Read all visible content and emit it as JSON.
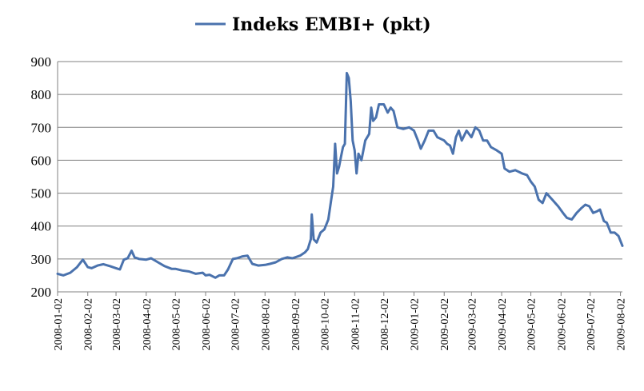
{
  "chart_data": {
    "type": "line",
    "title": "",
    "legend": {
      "position": "top-center"
    },
    "grid": {
      "horizontal": true,
      "vertical": false
    },
    "ylim": [
      200,
      900
    ],
    "yticks": [
      200,
      300,
      400,
      500,
      600,
      700,
      800,
      900
    ],
    "xlim": [
      "2008-01-02",
      "2009-08-04"
    ],
    "xticks": [
      "2008-01-02",
      "2008-02-02",
      "2008-03-02",
      "2008-04-02",
      "2008-05-02",
      "2008-06-02",
      "2008-07-02",
      "2008-08-02",
      "2008-09-02",
      "2008-10-02",
      "2008-11-02",
      "2008-12-02",
      "2009-01-02",
      "2009-02-02",
      "2009-03-02",
      "2009-04-02",
      "2009-05-02",
      "2009-06-02",
      "2009-07-02",
      "2009-08-02"
    ],
    "series": [
      {
        "name": "Indeks EMBI+ (pkt)",
        "color": "#4a72ad",
        "points": [
          [
            "2008-01-02",
            255
          ],
          [
            "2008-01-08",
            250
          ],
          [
            "2008-01-15",
            258
          ],
          [
            "2008-01-22",
            275
          ],
          [
            "2008-01-28",
            298
          ],
          [
            "2008-02-02",
            275
          ],
          [
            "2008-02-06",
            272
          ],
          [
            "2008-02-12",
            280
          ],
          [
            "2008-02-18",
            284
          ],
          [
            "2008-02-25",
            278
          ],
          [
            "2008-03-02",
            272
          ],
          [
            "2008-03-06",
            268
          ],
          [
            "2008-03-10",
            298
          ],
          [
            "2008-03-14",
            302
          ],
          [
            "2008-03-18",
            325
          ],
          [
            "2008-03-21",
            305
          ],
          [
            "2008-03-26",
            300
          ],
          [
            "2008-04-02",
            298
          ],
          [
            "2008-04-07",
            302
          ],
          [
            "2008-04-14",
            290
          ],
          [
            "2008-04-21",
            278
          ],
          [
            "2008-04-28",
            270
          ],
          [
            "2008-05-02",
            270
          ],
          [
            "2008-05-09",
            265
          ],
          [
            "2008-05-16",
            262
          ],
          [
            "2008-05-23",
            255
          ],
          [
            "2008-05-30",
            258
          ],
          [
            "2008-06-02",
            250
          ],
          [
            "2008-06-06",
            252
          ],
          [
            "2008-06-12",
            243
          ],
          [
            "2008-06-16",
            250
          ],
          [
            "2008-06-21",
            250
          ],
          [
            "2008-06-25",
            268
          ],
          [
            "2008-06-30",
            300
          ],
          [
            "2008-07-04",
            302
          ],
          [
            "2008-07-10",
            308
          ],
          [
            "2008-07-15",
            310
          ],
          [
            "2008-07-20",
            285
          ],
          [
            "2008-07-26",
            280
          ],
          [
            "2008-08-02",
            282
          ],
          [
            "2008-08-07",
            285
          ],
          [
            "2008-08-13",
            290
          ],
          [
            "2008-08-19",
            300
          ],
          [
            "2008-08-25",
            305
          ],
          [
            "2008-08-30",
            302
          ],
          [
            "2008-09-02",
            305
          ],
          [
            "2008-09-07",
            310
          ],
          [
            "2008-09-12",
            320
          ],
          [
            "2008-09-15",
            330
          ],
          [
            "2008-09-18",
            360
          ],
          [
            "2008-09-19",
            435
          ],
          [
            "2008-09-21",
            360
          ],
          [
            "2008-09-24",
            350
          ],
          [
            "2008-09-28",
            380
          ],
          [
            "2008-10-02",
            390
          ],
          [
            "2008-10-06",
            420
          ],
          [
            "2008-10-09",
            480
          ],
          [
            "2008-10-11",
            520
          ],
          [
            "2008-10-13",
            650
          ],
          [
            "2008-10-15",
            560
          ],
          [
            "2008-10-17",
            580
          ],
          [
            "2008-10-19",
            610
          ],
          [
            "2008-10-21",
            640
          ],
          [
            "2008-10-23",
            650
          ],
          [
            "2008-10-25",
            865
          ],
          [
            "2008-10-27",
            850
          ],
          [
            "2008-10-29",
            780
          ],
          [
            "2008-10-31",
            660
          ],
          [
            "2008-11-02",
            630
          ],
          [
            "2008-11-04",
            560
          ],
          [
            "2008-11-06",
            620
          ],
          [
            "2008-11-09",
            600
          ],
          [
            "2008-11-13",
            660
          ],
          [
            "2008-11-17",
            680
          ],
          [
            "2008-11-19",
            760
          ],
          [
            "2008-11-21",
            720
          ],
          [
            "2008-11-24",
            730
          ],
          [
            "2008-11-27",
            770
          ],
          [
            "2008-12-02",
            770
          ],
          [
            "2008-12-06",
            745
          ],
          [
            "2008-12-09",
            760
          ],
          [
            "2008-12-12",
            750
          ],
          [
            "2008-12-16",
            700
          ],
          [
            "2008-12-22",
            695
          ],
          [
            "2008-12-28",
            700
          ],
          [
            "2009-01-02",
            690
          ],
          [
            "2009-01-06",
            660
          ],
          [
            "2009-01-09",
            635
          ],
          [
            "2009-01-13",
            660
          ],
          [
            "2009-01-17",
            690
          ],
          [
            "2009-01-22",
            690
          ],
          [
            "2009-01-26",
            670
          ],
          [
            "2009-02-02",
            660
          ],
          [
            "2009-02-05",
            650
          ],
          [
            "2009-02-08",
            645
          ],
          [
            "2009-02-11",
            620
          ],
          [
            "2009-02-14",
            670
          ],
          [
            "2009-02-17",
            690
          ],
          [
            "2009-02-20",
            660
          ],
          [
            "2009-02-25",
            690
          ],
          [
            "2009-03-02",
            670
          ],
          [
            "2009-03-06",
            700
          ],
          [
            "2009-03-10",
            690
          ],
          [
            "2009-03-14",
            660
          ],
          [
            "2009-03-18",
            660
          ],
          [
            "2009-03-22",
            640
          ],
          [
            "2009-03-28",
            630
          ],
          [
            "2009-04-02",
            620
          ],
          [
            "2009-04-05",
            575
          ],
          [
            "2009-04-10",
            565
          ],
          [
            "2009-04-16",
            570
          ],
          [
            "2009-04-23",
            560
          ],
          [
            "2009-04-28",
            555
          ],
          [
            "2009-05-02",
            535
          ],
          [
            "2009-05-06",
            520
          ],
          [
            "2009-05-10",
            480
          ],
          [
            "2009-05-14",
            470
          ],
          [
            "2009-05-18",
            500
          ],
          [
            "2009-05-24",
            480
          ],
          [
            "2009-05-30",
            460
          ],
          [
            "2009-06-04",
            440
          ],
          [
            "2009-06-08",
            425
          ],
          [
            "2009-06-13",
            420
          ],
          [
            "2009-06-18",
            440
          ],
          [
            "2009-06-23",
            455
          ],
          [
            "2009-06-27",
            465
          ],
          [
            "2009-07-01",
            460
          ],
          [
            "2009-07-05",
            440
          ],
          [
            "2009-07-09",
            445
          ],
          [
            "2009-07-12",
            450
          ],
          [
            "2009-07-16",
            415
          ],
          [
            "2009-07-19",
            410
          ],
          [
            "2009-07-23",
            380
          ],
          [
            "2009-07-27",
            380
          ],
          [
            "2009-07-31",
            370
          ],
          [
            "2009-08-04",
            340
          ]
        ]
      }
    ]
  }
}
